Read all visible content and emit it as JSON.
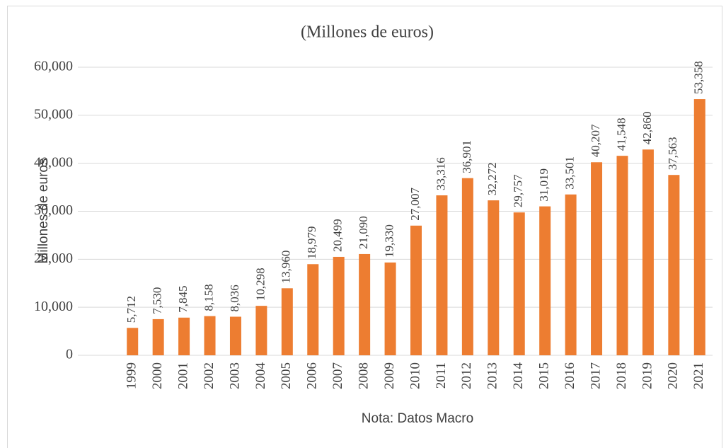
{
  "chart_data": {
    "type": "bar",
    "title": "(Millones de euros)",
    "y_label": "Millones de euros",
    "x_label": "Nota: Datos Macro",
    "categories": [
      "1999",
      "2000",
      "2001",
      "2002",
      "2003",
      "2004",
      "2005",
      "2006",
      "2007",
      "2008",
      "2009",
      "2010",
      "2011",
      "2012",
      "2013",
      "2014",
      "2015",
      "2016",
      "2017",
      "2018",
      "2019",
      "2020",
      "2021"
    ],
    "values": [
      5712,
      7530,
      7845,
      8158,
      8036,
      10298,
      13960,
      18979,
      20499,
      21090,
      19330,
      27007,
      33316,
      36901,
      32272,
      29757,
      31019,
      33501,
      40207,
      41548,
      42860,
      37563,
      53358
    ],
    "value_labels": [
      "5,712",
      "7,530",
      "7,845",
      "8,158",
      "8,036",
      "10,298",
      "13,960",
      "18,979",
      "20,499",
      "21,090",
      "19,330",
      "27,007",
      "33,316",
      "36,901",
      "32,272",
      "29,757",
      "31,019",
      "33,501",
      "40,207",
      "41,548",
      "42,860",
      "37,563",
      "53,358"
    ],
    "color": "#ed7d31",
    "ylim": [
      0,
      60000
    ],
    "yticks": [
      0,
      {
        "value": 10000,
        "label": "10,000"
      },
      {
        "value": 20000,
        "label": "20,000"
      },
      {
        "value": 30000,
        "label": "30,000"
      },
      {
        "value": 40000,
        "label": "40,000"
      },
      {
        "value": 50000,
        "label": "50,000"
      },
      {
        "value": 60000,
        "label": "60,000"
      }
    ],
    "grid": true
  }
}
